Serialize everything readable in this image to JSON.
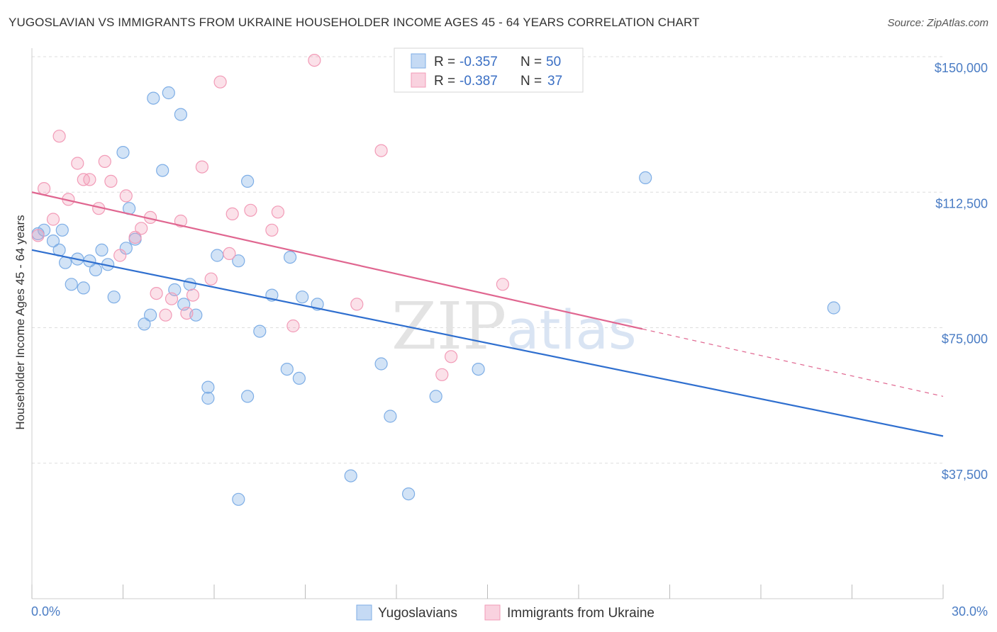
{
  "colors": {
    "blue": "#7eaee6",
    "blue_fill": "rgba(126,174,230,0.35)",
    "blue_line": "#2f6fcf",
    "pink": "#f29bb7",
    "pink_fill": "rgba(242,155,183,0.30)",
    "pink_line": "#e06690",
    "grid": "#dddddd",
    "axis_text": "#4a7cc4"
  },
  "chart_data": {
    "type": "scatter",
    "title": "YUGOSLAVIAN VS IMMIGRANTS FROM UKRAINE HOUSEHOLDER INCOME AGES 45 - 64 YEARS CORRELATION CHART",
    "source": "Source: ZipAtlas.com",
    "ylabel": "Householder Income Ages 45 - 64 years",
    "xlim": [
      0,
      30
    ],
    "ylim": [
      0,
      150000
    ],
    "x_tick_labels": [
      "0.0%",
      "30.0%"
    ],
    "y_ticks": [
      {
        "value": 37500,
        "label": "$37,500"
      },
      {
        "value": 75000,
        "label": "$75,000"
      },
      {
        "value": 112500,
        "label": "$112,500"
      },
      {
        "value": 150000,
        "label": "$150,000"
      }
    ],
    "legend": [
      {
        "series": "Yugoslavians",
        "r_label": "R =",
        "r_value": "-0.357",
        "n_label": "N =",
        "n_value": "50"
      },
      {
        "series": "Immigrants from Ukraine",
        "r_label": "R =",
        "r_value": "-0.387",
        "n_label": "N =",
        "n_value": "37"
      }
    ],
    "series": [
      {
        "name": "Yugoslavians",
        "color": "#7eaee6",
        "trend": {
          "x0": 0,
          "y0": 96500,
          "x1": 30,
          "y1": 45000,
          "solid_until": 30
        },
        "points": [
          [
            0.2,
            101000
          ],
          [
            0.4,
            102000
          ],
          [
            0.7,
            99000
          ],
          [
            0.9,
            96500
          ],
          [
            1.1,
            93000
          ],
          [
            1.3,
            87000
          ],
          [
            1.5,
            94000
          ],
          [
            1.7,
            86000
          ],
          [
            1.9,
            93500
          ],
          [
            2.1,
            91000
          ],
          [
            2.3,
            96500
          ],
          [
            2.5,
            92500
          ],
          [
            2.7,
            83500
          ],
          [
            3.0,
            123500
          ],
          [
            3.1,
            97000
          ],
          [
            3.2,
            108000
          ],
          [
            3.4,
            99500
          ],
          [
            3.7,
            76000
          ],
          [
            3.9,
            78500
          ],
          [
            4.0,
            138500
          ],
          [
            4.3,
            118500
          ],
          [
            4.5,
            140000
          ],
          [
            4.7,
            85500
          ],
          [
            4.9,
            134000
          ],
          [
            5.0,
            81500
          ],
          [
            5.2,
            87000
          ],
          [
            5.4,
            78500
          ],
          [
            5.8,
            58500
          ],
          [
            5.8,
            55500
          ],
          [
            6.1,
            95000
          ],
          [
            6.8,
            27500
          ],
          [
            6.8,
            93500
          ],
          [
            7.1,
            56000
          ],
          [
            7.1,
            115500
          ],
          [
            7.5,
            74000
          ],
          [
            7.9,
            84000
          ],
          [
            8.4,
            63500
          ],
          [
            8.5,
            94500
          ],
          [
            8.8,
            61000
          ],
          [
            8.9,
            83500
          ],
          [
            9.4,
            81500
          ],
          [
            10.5,
            34000
          ],
          [
            11.5,
            65000
          ],
          [
            11.8,
            50500
          ],
          [
            12.4,
            29000
          ],
          [
            13.3,
            56000
          ],
          [
            14.7,
            63500
          ],
          [
            20.2,
            116500
          ],
          [
            26.4,
            80500
          ],
          [
            1.0,
            102000
          ]
        ]
      },
      {
        "name": "Immigrants from Ukraine",
        "color": "#f29bb7",
        "trend": {
          "x0": 0,
          "y0": 112500,
          "x1": 30,
          "y1": 56000,
          "solid_until": 20.1
        },
        "points": [
          [
            0.2,
            100500
          ],
          [
            0.4,
            113500
          ],
          [
            0.7,
            105000
          ],
          [
            0.9,
            128000
          ],
          [
            1.2,
            110500
          ],
          [
            1.5,
            120500
          ],
          [
            1.7,
            116000
          ],
          [
            1.9,
            116000
          ],
          [
            2.2,
            108000
          ],
          [
            2.4,
            121000
          ],
          [
            2.6,
            115500
          ],
          [
            2.9,
            95000
          ],
          [
            3.1,
            111500
          ],
          [
            3.4,
            100000
          ],
          [
            3.6,
            102500
          ],
          [
            3.9,
            105500
          ],
          [
            4.1,
            84500
          ],
          [
            4.4,
            78500
          ],
          [
            4.6,
            83000
          ],
          [
            4.9,
            104500
          ],
          [
            5.1,
            79000
          ],
          [
            5.3,
            84000
          ],
          [
            5.6,
            119500
          ],
          [
            5.9,
            88500
          ],
          [
            6.2,
            143000
          ],
          [
            6.5,
            95500
          ],
          [
            6.6,
            106500
          ],
          [
            7.2,
            107500
          ],
          [
            7.9,
            102000
          ],
          [
            8.1,
            107000
          ],
          [
            8.6,
            75500
          ],
          [
            9.3,
            149000
          ],
          [
            10.7,
            81500
          ],
          [
            11.5,
            124000
          ],
          [
            13.5,
            62000
          ],
          [
            13.8,
            67000
          ],
          [
            15.5,
            87000
          ]
        ]
      }
    ]
  }
}
